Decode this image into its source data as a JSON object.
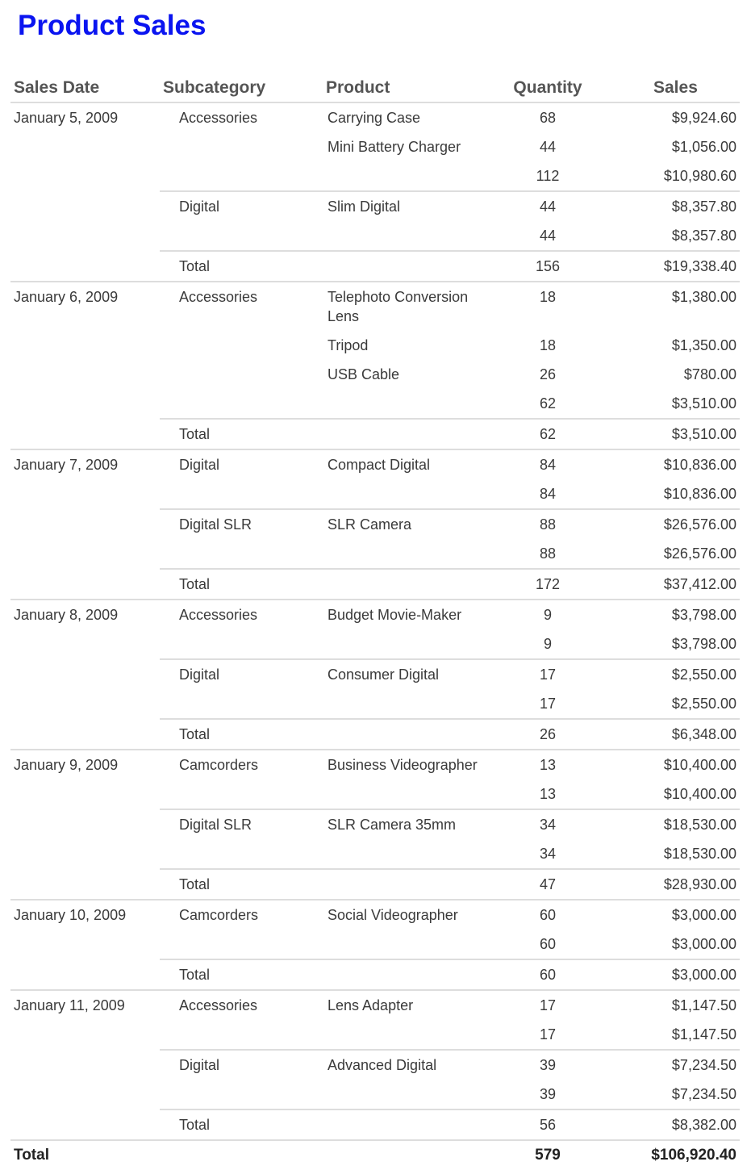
{
  "title": "Product Sales",
  "headers": {
    "date": "Sales Date",
    "subcategory": "Subcategory",
    "product": "Product",
    "quantity": "Quantity",
    "sales": "Sales"
  },
  "total_label": "Total",
  "dates": [
    {
      "date": "January 5, 2009",
      "groups": [
        {
          "subcategory": "Accessories",
          "items": [
            {
              "product": "Carrying Case",
              "quantity": "68",
              "sales": "$9,924.60"
            },
            {
              "product": "Mini Battery Charger",
              "quantity": "44",
              "sales": "$1,056.00"
            }
          ],
          "subtotal": {
            "quantity": "112",
            "sales": "$10,980.60"
          }
        },
        {
          "subcategory": "Digital",
          "items": [
            {
              "product": "Slim Digital",
              "quantity": "44",
              "sales": "$8,357.80"
            }
          ],
          "subtotal": {
            "quantity": "44",
            "sales": "$8,357.80"
          }
        }
      ],
      "total": {
        "quantity": "156",
        "sales": "$19,338.40"
      }
    },
    {
      "date": "January 6, 2009",
      "groups": [
        {
          "subcategory": "Accessories",
          "items": [
            {
              "product": "Telephoto Conversion Lens",
              "quantity": "18",
              "sales": "$1,380.00"
            },
            {
              "product": "Tripod",
              "quantity": "18",
              "sales": "$1,350.00"
            },
            {
              "product": "USB Cable",
              "quantity": "26",
              "sales": "$780.00"
            }
          ],
          "subtotal": {
            "quantity": "62",
            "sales": "$3,510.00"
          }
        }
      ],
      "total": {
        "quantity": "62",
        "sales": "$3,510.00"
      }
    },
    {
      "date": "January 7, 2009",
      "groups": [
        {
          "subcategory": "Digital",
          "items": [
            {
              "product": "Compact Digital",
              "quantity": "84",
              "sales": "$10,836.00"
            }
          ],
          "subtotal": {
            "quantity": "84",
            "sales": "$10,836.00"
          }
        },
        {
          "subcategory": "Digital SLR",
          "items": [
            {
              "product": "SLR Camera",
              "quantity": "88",
              "sales": "$26,576.00"
            }
          ],
          "subtotal": {
            "quantity": "88",
            "sales": "$26,576.00"
          }
        }
      ],
      "total": {
        "quantity": "172",
        "sales": "$37,412.00"
      }
    },
    {
      "date": "January 8, 2009",
      "groups": [
        {
          "subcategory": "Accessories",
          "items": [
            {
              "product": "Budget Movie-Maker",
              "quantity": "9",
              "sales": "$3,798.00"
            }
          ],
          "subtotal": {
            "quantity": "9",
            "sales": "$3,798.00"
          }
        },
        {
          "subcategory": "Digital",
          "items": [
            {
              "product": "Consumer Digital",
              "quantity": "17",
              "sales": "$2,550.00"
            }
          ],
          "subtotal": {
            "quantity": "17",
            "sales": "$2,550.00"
          }
        }
      ],
      "total": {
        "quantity": "26",
        "sales": "$6,348.00"
      }
    },
    {
      "date": "January 9, 2009",
      "groups": [
        {
          "subcategory": "Camcorders",
          "items": [
            {
              "product": "Business Videographer",
              "quantity": "13",
              "sales": "$10,400.00"
            }
          ],
          "subtotal": {
            "quantity": "13",
            "sales": "$10,400.00"
          }
        },
        {
          "subcategory": "Digital SLR",
          "items": [
            {
              "product": "SLR Camera 35mm",
              "quantity": "34",
              "sales": "$18,530.00"
            }
          ],
          "subtotal": {
            "quantity": "34",
            "sales": "$18,530.00"
          }
        }
      ],
      "total": {
        "quantity": "47",
        "sales": "$28,930.00"
      }
    },
    {
      "date": "January 10, 2009",
      "groups": [
        {
          "subcategory": "Camcorders",
          "items": [
            {
              "product": "Social Videographer",
              "quantity": "60",
              "sales": "$3,000.00"
            }
          ],
          "subtotal": {
            "quantity": "60",
            "sales": "$3,000.00"
          }
        }
      ],
      "total": {
        "quantity": "60",
        "sales": "$3,000.00"
      }
    },
    {
      "date": "January 11, 2009",
      "groups": [
        {
          "subcategory": "Accessories",
          "items": [
            {
              "product": "Lens Adapter",
              "quantity": "17",
              "sales": "$1,147.50"
            }
          ],
          "subtotal": {
            "quantity": "17",
            "sales": "$1,147.50"
          }
        },
        {
          "subcategory": "Digital",
          "items": [
            {
              "product": "Advanced Digital",
              "quantity": "39",
              "sales": "$7,234.50"
            }
          ],
          "subtotal": {
            "quantity": "39",
            "sales": "$7,234.50"
          }
        }
      ],
      "total": {
        "quantity": "56",
        "sales": "$8,382.00"
      }
    }
  ],
  "grand_total": {
    "label": "Total",
    "quantity": "579",
    "sales": "$106,920.40"
  }
}
